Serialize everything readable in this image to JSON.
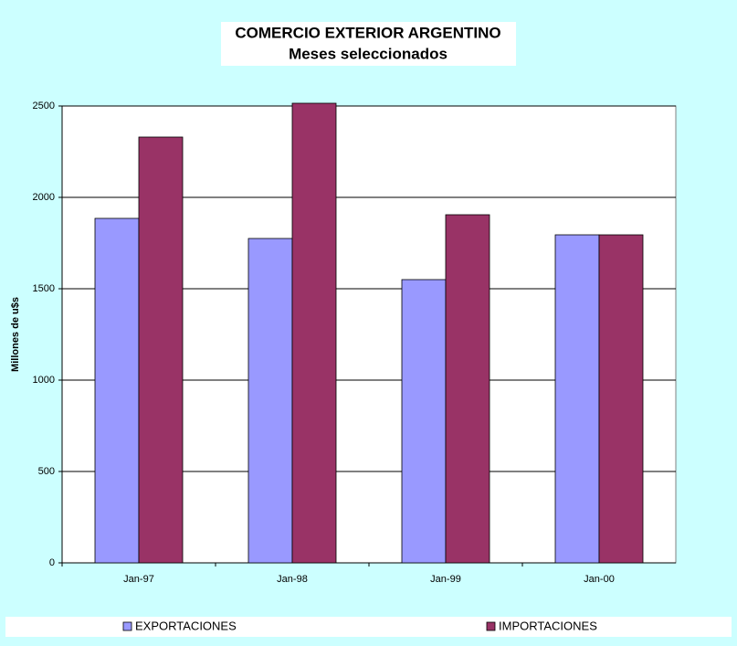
{
  "chart_data": {
    "type": "bar",
    "title": "COMERCIO EXTERIOR ARGENTINO",
    "subtitle": "Meses seleccionados",
    "y_label": "Millones de u$s",
    "categories": [
      "Jan-97",
      "Jan-98",
      "Jan-99",
      "Jan-00"
    ],
    "series": [
      {
        "name": "EXPORTACIONES",
        "color": "#9999ff",
        "values": [
          1885,
          1775,
          1550,
          1795
        ]
      },
      {
        "name": "IMPORTACIONES",
        "color": "#993366",
        "values": [
          2330,
          2515,
          1905,
          1795
        ]
      }
    ],
    "ylim": [
      0,
      2500
    ],
    "yticks": [
      0,
      500,
      1000,
      1500,
      2000,
      2500
    ],
    "grid": true,
    "legend": "bottom"
  }
}
